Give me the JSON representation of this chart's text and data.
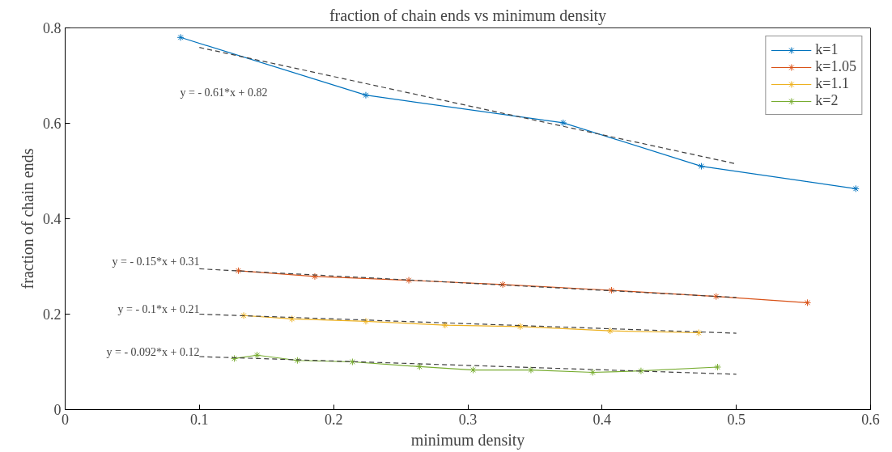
{
  "chart_data": {
    "type": "line",
    "title": "fraction of chain ends vs minimum density",
    "xlabel": "minimum density",
    "ylabel": "fraction of chain ends",
    "xlim": [
      0,
      0.6
    ],
    "ylim": [
      0,
      0.8
    ],
    "xticks": [
      0,
      0.1,
      0.2,
      0.3,
      0.4,
      0.5,
      0.6
    ],
    "yticks": [
      0,
      0.2,
      0.4,
      0.6,
      0.8
    ],
    "grid": false,
    "legend": "top right",
    "marker": "cross",
    "line_style": "solid",
    "series": [
      {
        "name": "k=1",
        "color": "#0072bd",
        "x": [
          0.086,
          0.224,
          0.371,
          0.474,
          0.589
        ],
        "values": [
          0.78,
          0.659,
          0.601,
          0.51,
          0.463
        ]
      },
      {
        "name": "k=1.05",
        "color": "#d95319",
        "x": [
          0.129,
          0.186,
          0.256,
          0.326,
          0.407,
          0.485,
          0.553
        ],
        "values": [
          0.291,
          0.279,
          0.271,
          0.262,
          0.25,
          0.237,
          0.224
        ]
      },
      {
        "name": "k=1.1",
        "color": "#edb120",
        "x": [
          0.133,
          0.169,
          0.224,
          0.283,
          0.339,
          0.406,
          0.472
        ],
        "values": [
          0.197,
          0.19,
          0.185,
          0.177,
          0.174,
          0.165,
          0.161
        ]
      },
      {
        "name": "k=2",
        "color": "#77ac30",
        "x": [
          0.126,
          0.143,
          0.173,
          0.214,
          0.264,
          0.304,
          0.347,
          0.393,
          0.429,
          0.486
        ],
        "values": [
          0.107,
          0.114,
          0.103,
          0.1,
          0.09,
          0.083,
          0.083,
          0.078,
          0.081,
          0.089
        ]
      },
      {
        "color": "#404040",
        "marker": "none",
        "line_style": "dashed",
        "x": [
          0.1,
          0.5
        ],
        "values": [
          0.759,
          0.515
        ]
      },
      {
        "color": "#404040",
        "marker": "none",
        "line_style": "dashed",
        "x": [
          0.1,
          0.5
        ],
        "values": [
          0.295,
          0.235
        ]
      },
      {
        "color": "#404040",
        "marker": "none",
        "line_style": "dashed",
        "x": [
          0.1,
          0.5
        ],
        "values": [
          0.2,
          0.16
        ]
      },
      {
        "color": "#404040",
        "marker": "none",
        "line_style": "dashed",
        "x": [
          0.1,
          0.5
        ],
        "values": [
          0.111,
          0.074
        ]
      }
    ],
    "annotations": [
      "y = - 0.61*x + 0.82",
      "y = - 0.15*x + 0.31",
      "y = - 0.1*x + 0.21",
      "y = - 0.092*x + 0.12"
    ]
  }
}
